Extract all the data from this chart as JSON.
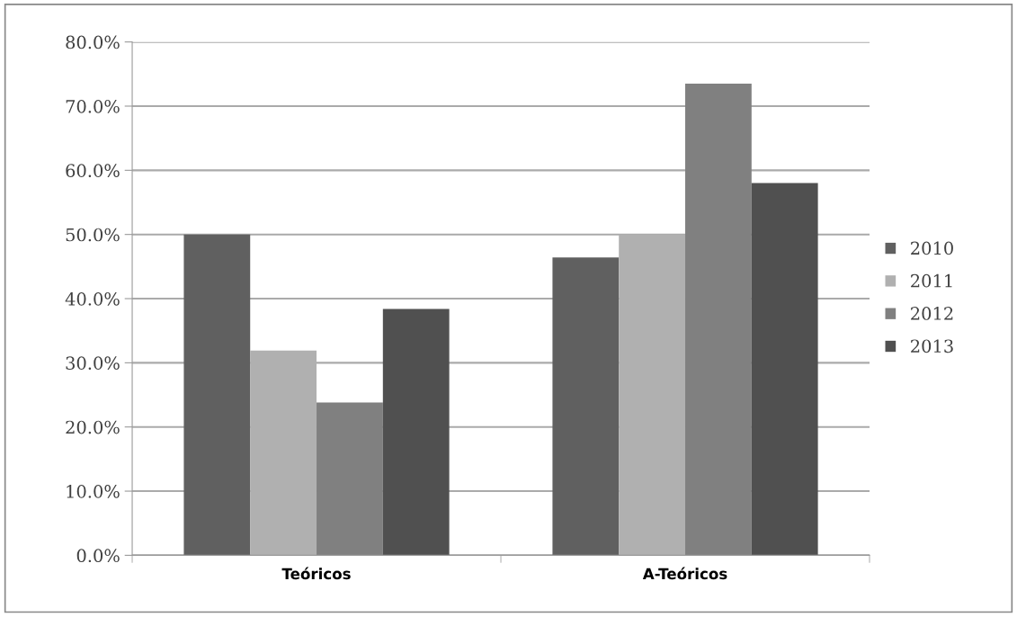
{
  "chart_data": {
    "type": "bar",
    "categories": [
      "Teóricos",
      "A-Teóricos"
    ],
    "series": [
      {
        "name": "2010",
        "color": "#606060",
        "values": [
          50.0,
          46.4
        ]
      },
      {
        "name": "2011",
        "color": "#b0b0b0",
        "values": [
          31.9,
          50.0
        ]
      },
      {
        "name": "2012",
        "color": "#808080",
        "values": [
          23.8,
          73.5
        ]
      },
      {
        "name": "2013",
        "color": "#505050",
        "values": [
          38.4,
          58.0
        ]
      }
    ],
    "ylim": [
      0,
      80
    ],
    "yticks": [
      {
        "value": 0,
        "label": "0.0%"
      },
      {
        "value": 10,
        "label": "10.0%"
      },
      {
        "value": 20,
        "label": "20.0%"
      },
      {
        "value": 30,
        "label": "30.0%"
      },
      {
        "value": 40,
        "label": "40.0%"
      },
      {
        "value": 50,
        "label": "50.0%"
      },
      {
        "value": 60,
        "label": "60.0%"
      },
      {
        "value": 70,
        "label": "70.0%"
      },
      {
        "value": 80,
        "label": "80.0%"
      }
    ],
    "grid": "y",
    "legend": "right"
  }
}
